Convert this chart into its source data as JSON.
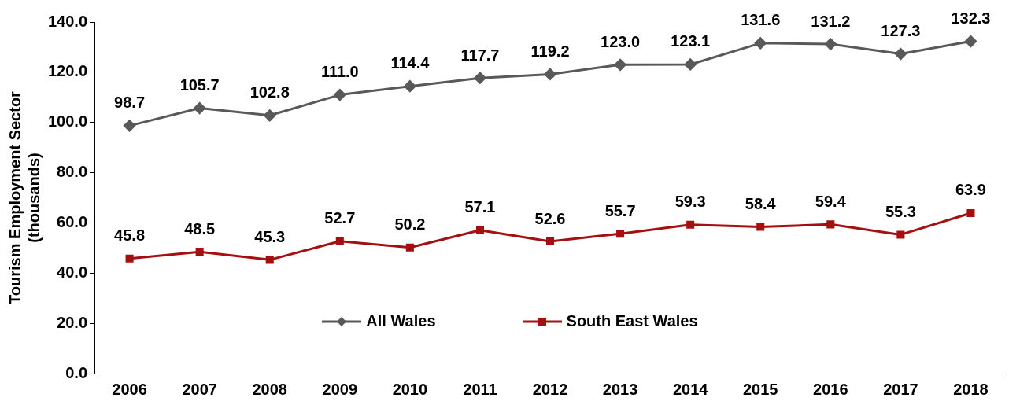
{
  "chart_data": {
    "type": "line",
    "ylabel": "Tourism Employment Sector (thousands)",
    "categories": [
      "2006",
      "2007",
      "2008",
      "2009",
      "2010",
      "2011",
      "2012",
      "2013",
      "2014",
      "2015",
      "2016",
      "2017",
      "2018"
    ],
    "series": [
      {
        "name": "All Wales",
        "color": "#595959",
        "marker": "diamond",
        "values": [
          98.7,
          105.7,
          102.8,
          111.0,
          114.4,
          117.7,
          119.2,
          123.0,
          123.1,
          131.6,
          131.2,
          127.3,
          132.3
        ],
        "value_labels": [
          "98.7",
          "105.7",
          "102.8",
          "111.0",
          "114.4",
          "117.7",
          "119.2",
          "123.0",
          "123.1",
          "131.6",
          "131.2",
          "127.3",
          "132.3"
        ]
      },
      {
        "name": "South East Wales",
        "color": "#a50f0f",
        "marker": "square",
        "values": [
          45.8,
          48.5,
          45.3,
          52.7,
          50.2,
          57.1,
          52.6,
          55.7,
          59.3,
          58.4,
          59.4,
          55.3,
          63.9
        ],
        "value_labels": [
          "45.8",
          "48.5",
          "45.3",
          "52.7",
          "50.2",
          "57.1",
          "52.6",
          "55.7",
          "59.3",
          "58.4",
          "59.4",
          "55.3",
          "63.9"
        ]
      }
    ],
    "ylim": [
      0,
      140
    ],
    "yticks": [
      {
        "value": 0,
        "label": "0.0"
      },
      {
        "value": 20,
        "label": "20.0"
      },
      {
        "value": 40,
        "label": "40.0"
      },
      {
        "value": 60,
        "label": "60.0"
      },
      {
        "value": 80,
        "label": "80.0"
      },
      {
        "value": 100,
        "label": "100.0"
      },
      {
        "value": 120,
        "label": "120.0"
      },
      {
        "value": 140,
        "label": "140.0"
      }
    ],
    "grid": false,
    "legend": "bottom",
    "line_style": "solid"
  }
}
